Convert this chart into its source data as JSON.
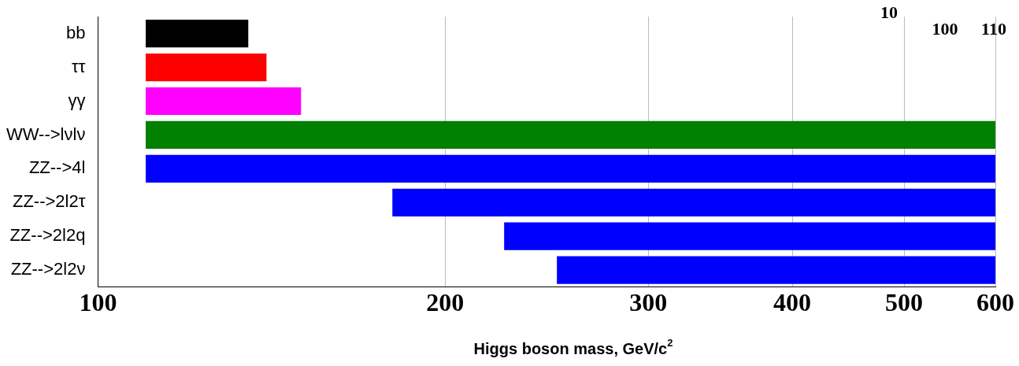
{
  "chart_data": {
    "type": "bar",
    "orientation": "horizontal",
    "xlabel": "Higgs boson mass, GeV/c$^{2}$",
    "categories": [
      "bb",
      "ττ",
      "γγ",
      "WW-->lνlν",
      "ZZ-->4l",
      "ZZ-->2l2τ",
      "ZZ-->2l2q",
      "ZZ-->2l2ν"
    ],
    "base": [
      110,
      110,
      110,
      110,
      110,
      180,
      225,
      250
    ],
    "values": [
      25,
      30,
      40,
      490,
      490,
      420,
      375,
      350
    ],
    "colors": [
      "#000000",
      "#ff0000",
      "#ff00ff",
      "#008000",
      "#0000ff",
      "#0000ff",
      "#0000ff",
      "#0000ff"
    ],
    "log": "x",
    "xlim": [
      100,
      600
    ],
    "xticks": [
      100,
      200,
      300,
      400,
      500,
      600
    ],
    "grid": "x",
    "legend": false,
    "annotations": [
      "10",
      "100",
      "110"
    ]
  }
}
